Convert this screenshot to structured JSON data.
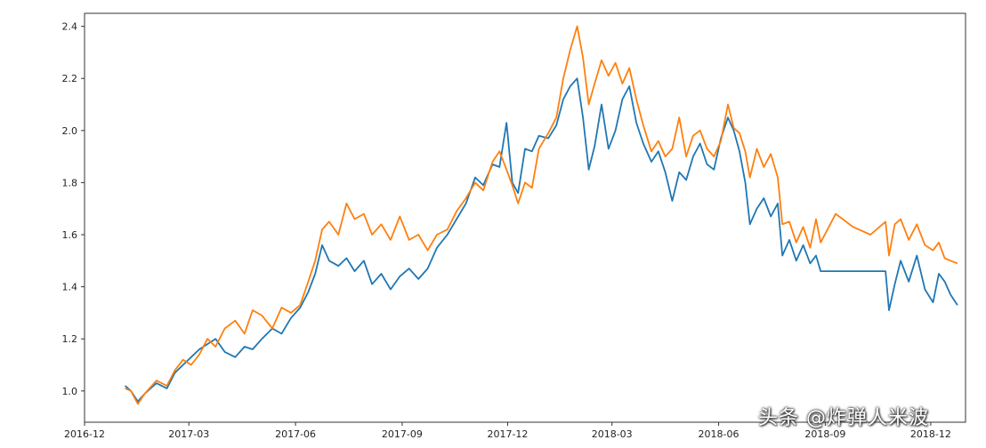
{
  "chart_data": {
    "type": "line",
    "title": "",
    "xlabel": "",
    "ylabel": "",
    "ylim": [
      0.88,
      2.45
    ],
    "xlim": [
      "2016-12-01",
      "2018-12-31"
    ],
    "grid": false,
    "legend": "none",
    "x_ticks": [
      "2016-12",
      "2017-03",
      "2017-06",
      "2017-09",
      "2017-12",
      "2018-03",
      "2018-06",
      "2018-09",
      "2018-12"
    ],
    "y_ticks": [
      "1.0",
      "1.2",
      "1.4",
      "1.6",
      "1.8",
      "2.0",
      "2.2",
      "2.4"
    ],
    "series": [
      {
        "color": "#1f77b4",
        "points": [
          [
            "2017-01-05",
            1.02
          ],
          [
            "2017-01-10",
            1.0
          ],
          [
            "2017-01-16",
            0.96
          ],
          [
            "2017-01-22",
            0.99
          ],
          [
            "2017-02-01",
            1.03
          ],
          [
            "2017-02-10",
            1.01
          ],
          [
            "2017-02-17",
            1.07
          ],
          [
            "2017-02-24",
            1.1
          ],
          [
            "2017-03-03",
            1.13
          ],
          [
            "2017-03-10",
            1.16
          ],
          [
            "2017-03-17",
            1.18
          ],
          [
            "2017-03-24",
            1.2
          ],
          [
            "2017-04-01",
            1.15
          ],
          [
            "2017-04-10",
            1.13
          ],
          [
            "2017-04-18",
            1.17
          ],
          [
            "2017-04-25",
            1.16
          ],
          [
            "2017-05-03",
            1.2
          ],
          [
            "2017-05-12",
            1.24
          ],
          [
            "2017-05-20",
            1.22
          ],
          [
            "2017-05-28",
            1.28
          ],
          [
            "2017-06-05",
            1.32
          ],
          [
            "2017-06-12",
            1.38
          ],
          [
            "2017-06-18",
            1.45
          ],
          [
            "2017-06-24",
            1.56
          ],
          [
            "2017-06-30",
            1.5
          ],
          [
            "2017-07-08",
            1.48
          ],
          [
            "2017-07-15",
            1.51
          ],
          [
            "2017-07-22",
            1.46
          ],
          [
            "2017-07-30",
            1.5
          ],
          [
            "2017-08-06",
            1.41
          ],
          [
            "2017-08-14",
            1.45
          ],
          [
            "2017-08-22",
            1.39
          ],
          [
            "2017-08-30",
            1.44
          ],
          [
            "2017-09-07",
            1.47
          ],
          [
            "2017-09-15",
            1.43
          ],
          [
            "2017-09-23",
            1.47
          ],
          [
            "2017-10-01",
            1.55
          ],
          [
            "2017-10-10",
            1.6
          ],
          [
            "2017-10-18",
            1.66
          ],
          [
            "2017-10-26",
            1.72
          ],
          [
            "2017-11-03",
            1.82
          ],
          [
            "2017-11-10",
            1.79
          ],
          [
            "2017-11-18",
            1.87
          ],
          [
            "2017-11-24",
            1.86
          ],
          [
            "2017-11-30",
            2.03
          ],
          [
            "2017-12-05",
            1.8
          ],
          [
            "2017-12-10",
            1.76
          ],
          [
            "2017-12-16",
            1.93
          ],
          [
            "2017-12-22",
            1.92
          ],
          [
            "2017-12-28",
            1.98
          ],
          [
            "2018-01-05",
            1.97
          ],
          [
            "2018-01-12",
            2.02
          ],
          [
            "2018-01-18",
            2.12
          ],
          [
            "2018-01-24",
            2.17
          ],
          [
            "2018-01-30",
            2.2
          ],
          [
            "2018-02-04",
            2.05
          ],
          [
            "2018-02-09",
            1.85
          ],
          [
            "2018-02-14",
            1.94
          ],
          [
            "2018-02-20",
            2.1
          ],
          [
            "2018-02-26",
            1.93
          ],
          [
            "2018-03-04",
            2.0
          ],
          [
            "2018-03-10",
            2.12
          ],
          [
            "2018-03-16",
            2.17
          ],
          [
            "2018-03-22",
            2.03
          ],
          [
            "2018-03-28",
            1.95
          ],
          [
            "2018-04-04",
            1.88
          ],
          [
            "2018-04-10",
            1.92
          ],
          [
            "2018-04-16",
            1.84
          ],
          [
            "2018-04-22",
            1.73
          ],
          [
            "2018-04-28",
            1.84
          ],
          [
            "2018-05-04",
            1.81
          ],
          [
            "2018-05-10",
            1.9
          ],
          [
            "2018-05-16",
            1.95
          ],
          [
            "2018-05-22",
            1.87
          ],
          [
            "2018-05-28",
            1.85
          ],
          [
            "2018-06-03",
            1.97
          ],
          [
            "2018-06-09",
            2.05
          ],
          [
            "2018-06-14",
            2.0
          ],
          [
            "2018-06-19",
            1.92
          ],
          [
            "2018-06-24",
            1.8
          ],
          [
            "2018-06-28",
            1.64
          ],
          [
            "2018-07-04",
            1.7
          ],
          [
            "2018-07-10",
            1.74
          ],
          [
            "2018-07-16",
            1.67
          ],
          [
            "2018-07-22",
            1.72
          ],
          [
            "2018-07-26",
            1.52
          ],
          [
            "2018-08-01",
            1.58
          ],
          [
            "2018-08-07",
            1.5
          ],
          [
            "2018-08-13",
            1.56
          ],
          [
            "2018-08-19",
            1.49
          ],
          [
            "2018-08-24",
            1.52
          ],
          [
            "2018-08-28",
            1.46
          ],
          [
            "2018-09-10",
            1.46
          ],
          [
            "2018-09-25",
            1.46
          ],
          [
            "2018-10-10",
            1.46
          ],
          [
            "2018-10-23",
            1.46
          ],
          [
            "2018-10-26",
            1.31
          ],
          [
            "2018-10-31",
            1.41
          ],
          [
            "2018-11-05",
            1.5
          ],
          [
            "2018-11-12",
            1.42
          ],
          [
            "2018-11-19",
            1.52
          ],
          [
            "2018-11-26",
            1.39
          ],
          [
            "2018-12-03",
            1.34
          ],
          [
            "2018-12-08",
            1.45
          ],
          [
            "2018-12-13",
            1.42
          ],
          [
            "2018-12-18",
            1.37
          ],
          [
            "2018-12-24",
            1.33
          ]
        ]
      },
      {
        "color": "#ff7f0e",
        "points": [
          [
            "2017-01-05",
            1.01
          ],
          [
            "2017-01-10",
            1.0
          ],
          [
            "2017-01-16",
            0.95
          ],
          [
            "2017-01-22",
            0.99
          ],
          [
            "2017-02-01",
            1.04
          ],
          [
            "2017-02-10",
            1.02
          ],
          [
            "2017-02-17",
            1.08
          ],
          [
            "2017-02-24",
            1.12
          ],
          [
            "2017-03-03",
            1.1
          ],
          [
            "2017-03-10",
            1.14
          ],
          [
            "2017-03-17",
            1.2
          ],
          [
            "2017-03-24",
            1.17
          ],
          [
            "2017-04-01",
            1.24
          ],
          [
            "2017-04-10",
            1.27
          ],
          [
            "2017-04-18",
            1.22
          ],
          [
            "2017-04-25",
            1.31
          ],
          [
            "2017-05-03",
            1.29
          ],
          [
            "2017-05-12",
            1.24
          ],
          [
            "2017-05-20",
            1.32
          ],
          [
            "2017-05-28",
            1.3
          ],
          [
            "2017-06-05",
            1.33
          ],
          [
            "2017-06-12",
            1.42
          ],
          [
            "2017-06-18",
            1.5
          ],
          [
            "2017-06-24",
            1.62
          ],
          [
            "2017-06-30",
            1.65
          ],
          [
            "2017-07-08",
            1.6
          ],
          [
            "2017-07-15",
            1.72
          ],
          [
            "2017-07-22",
            1.66
          ],
          [
            "2017-07-30",
            1.68
          ],
          [
            "2017-08-06",
            1.6
          ],
          [
            "2017-08-14",
            1.64
          ],
          [
            "2017-08-22",
            1.58
          ],
          [
            "2017-08-30",
            1.67
          ],
          [
            "2017-09-07",
            1.58
          ],
          [
            "2017-09-15",
            1.6
          ],
          [
            "2017-09-23",
            1.54
          ],
          [
            "2017-10-01",
            1.6
          ],
          [
            "2017-10-10",
            1.62
          ],
          [
            "2017-10-18",
            1.69
          ],
          [
            "2017-10-26",
            1.74
          ],
          [
            "2017-11-03",
            1.8
          ],
          [
            "2017-11-10",
            1.77
          ],
          [
            "2017-11-18",
            1.88
          ],
          [
            "2017-11-24",
            1.92
          ],
          [
            "2017-11-30",
            1.85
          ],
          [
            "2017-12-05",
            1.79
          ],
          [
            "2017-12-10",
            1.72
          ],
          [
            "2017-12-16",
            1.8
          ],
          [
            "2017-12-22",
            1.78
          ],
          [
            "2017-12-28",
            1.93
          ],
          [
            "2018-01-05",
            1.99
          ],
          [
            "2018-01-12",
            2.05
          ],
          [
            "2018-01-18",
            2.2
          ],
          [
            "2018-01-24",
            2.31
          ],
          [
            "2018-01-30",
            2.4
          ],
          [
            "2018-02-04",
            2.28
          ],
          [
            "2018-02-09",
            2.1
          ],
          [
            "2018-02-14",
            2.18
          ],
          [
            "2018-02-20",
            2.27
          ],
          [
            "2018-02-26",
            2.21
          ],
          [
            "2018-03-04",
            2.26
          ],
          [
            "2018-03-10",
            2.18
          ],
          [
            "2018-03-16",
            2.24
          ],
          [
            "2018-03-22",
            2.12
          ],
          [
            "2018-03-28",
            2.02
          ],
          [
            "2018-04-04",
            1.92
          ],
          [
            "2018-04-10",
            1.96
          ],
          [
            "2018-04-16",
            1.9
          ],
          [
            "2018-04-22",
            1.93
          ],
          [
            "2018-04-28",
            2.05
          ],
          [
            "2018-05-04",
            1.9
          ],
          [
            "2018-05-10",
            1.98
          ],
          [
            "2018-05-16",
            2.0
          ],
          [
            "2018-05-22",
            1.93
          ],
          [
            "2018-05-28",
            1.9
          ],
          [
            "2018-06-03",
            1.96
          ],
          [
            "2018-06-09",
            2.1
          ],
          [
            "2018-06-14",
            2.01
          ],
          [
            "2018-06-19",
            1.99
          ],
          [
            "2018-06-24",
            1.92
          ],
          [
            "2018-06-28",
            1.82
          ],
          [
            "2018-07-04",
            1.93
          ],
          [
            "2018-07-10",
            1.86
          ],
          [
            "2018-07-16",
            1.91
          ],
          [
            "2018-07-22",
            1.82
          ],
          [
            "2018-07-26",
            1.64
          ],
          [
            "2018-08-01",
            1.65
          ],
          [
            "2018-08-07",
            1.57
          ],
          [
            "2018-08-13",
            1.63
          ],
          [
            "2018-08-19",
            1.55
          ],
          [
            "2018-08-24",
            1.66
          ],
          [
            "2018-08-28",
            1.57
          ],
          [
            "2018-09-10",
            1.68
          ],
          [
            "2018-09-25",
            1.63
          ],
          [
            "2018-10-10",
            1.6
          ],
          [
            "2018-10-23",
            1.65
          ],
          [
            "2018-10-26",
            1.52
          ],
          [
            "2018-10-31",
            1.64
          ],
          [
            "2018-11-05",
            1.66
          ],
          [
            "2018-11-12",
            1.58
          ],
          [
            "2018-11-19",
            1.64
          ],
          [
            "2018-11-26",
            1.56
          ],
          [
            "2018-12-03",
            1.54
          ],
          [
            "2018-12-08",
            1.57
          ],
          [
            "2018-12-13",
            1.51
          ],
          [
            "2018-12-18",
            1.5
          ],
          [
            "2018-12-24",
            1.49
          ]
        ]
      }
    ]
  },
  "watermark": "头条 @炸弹人米波"
}
